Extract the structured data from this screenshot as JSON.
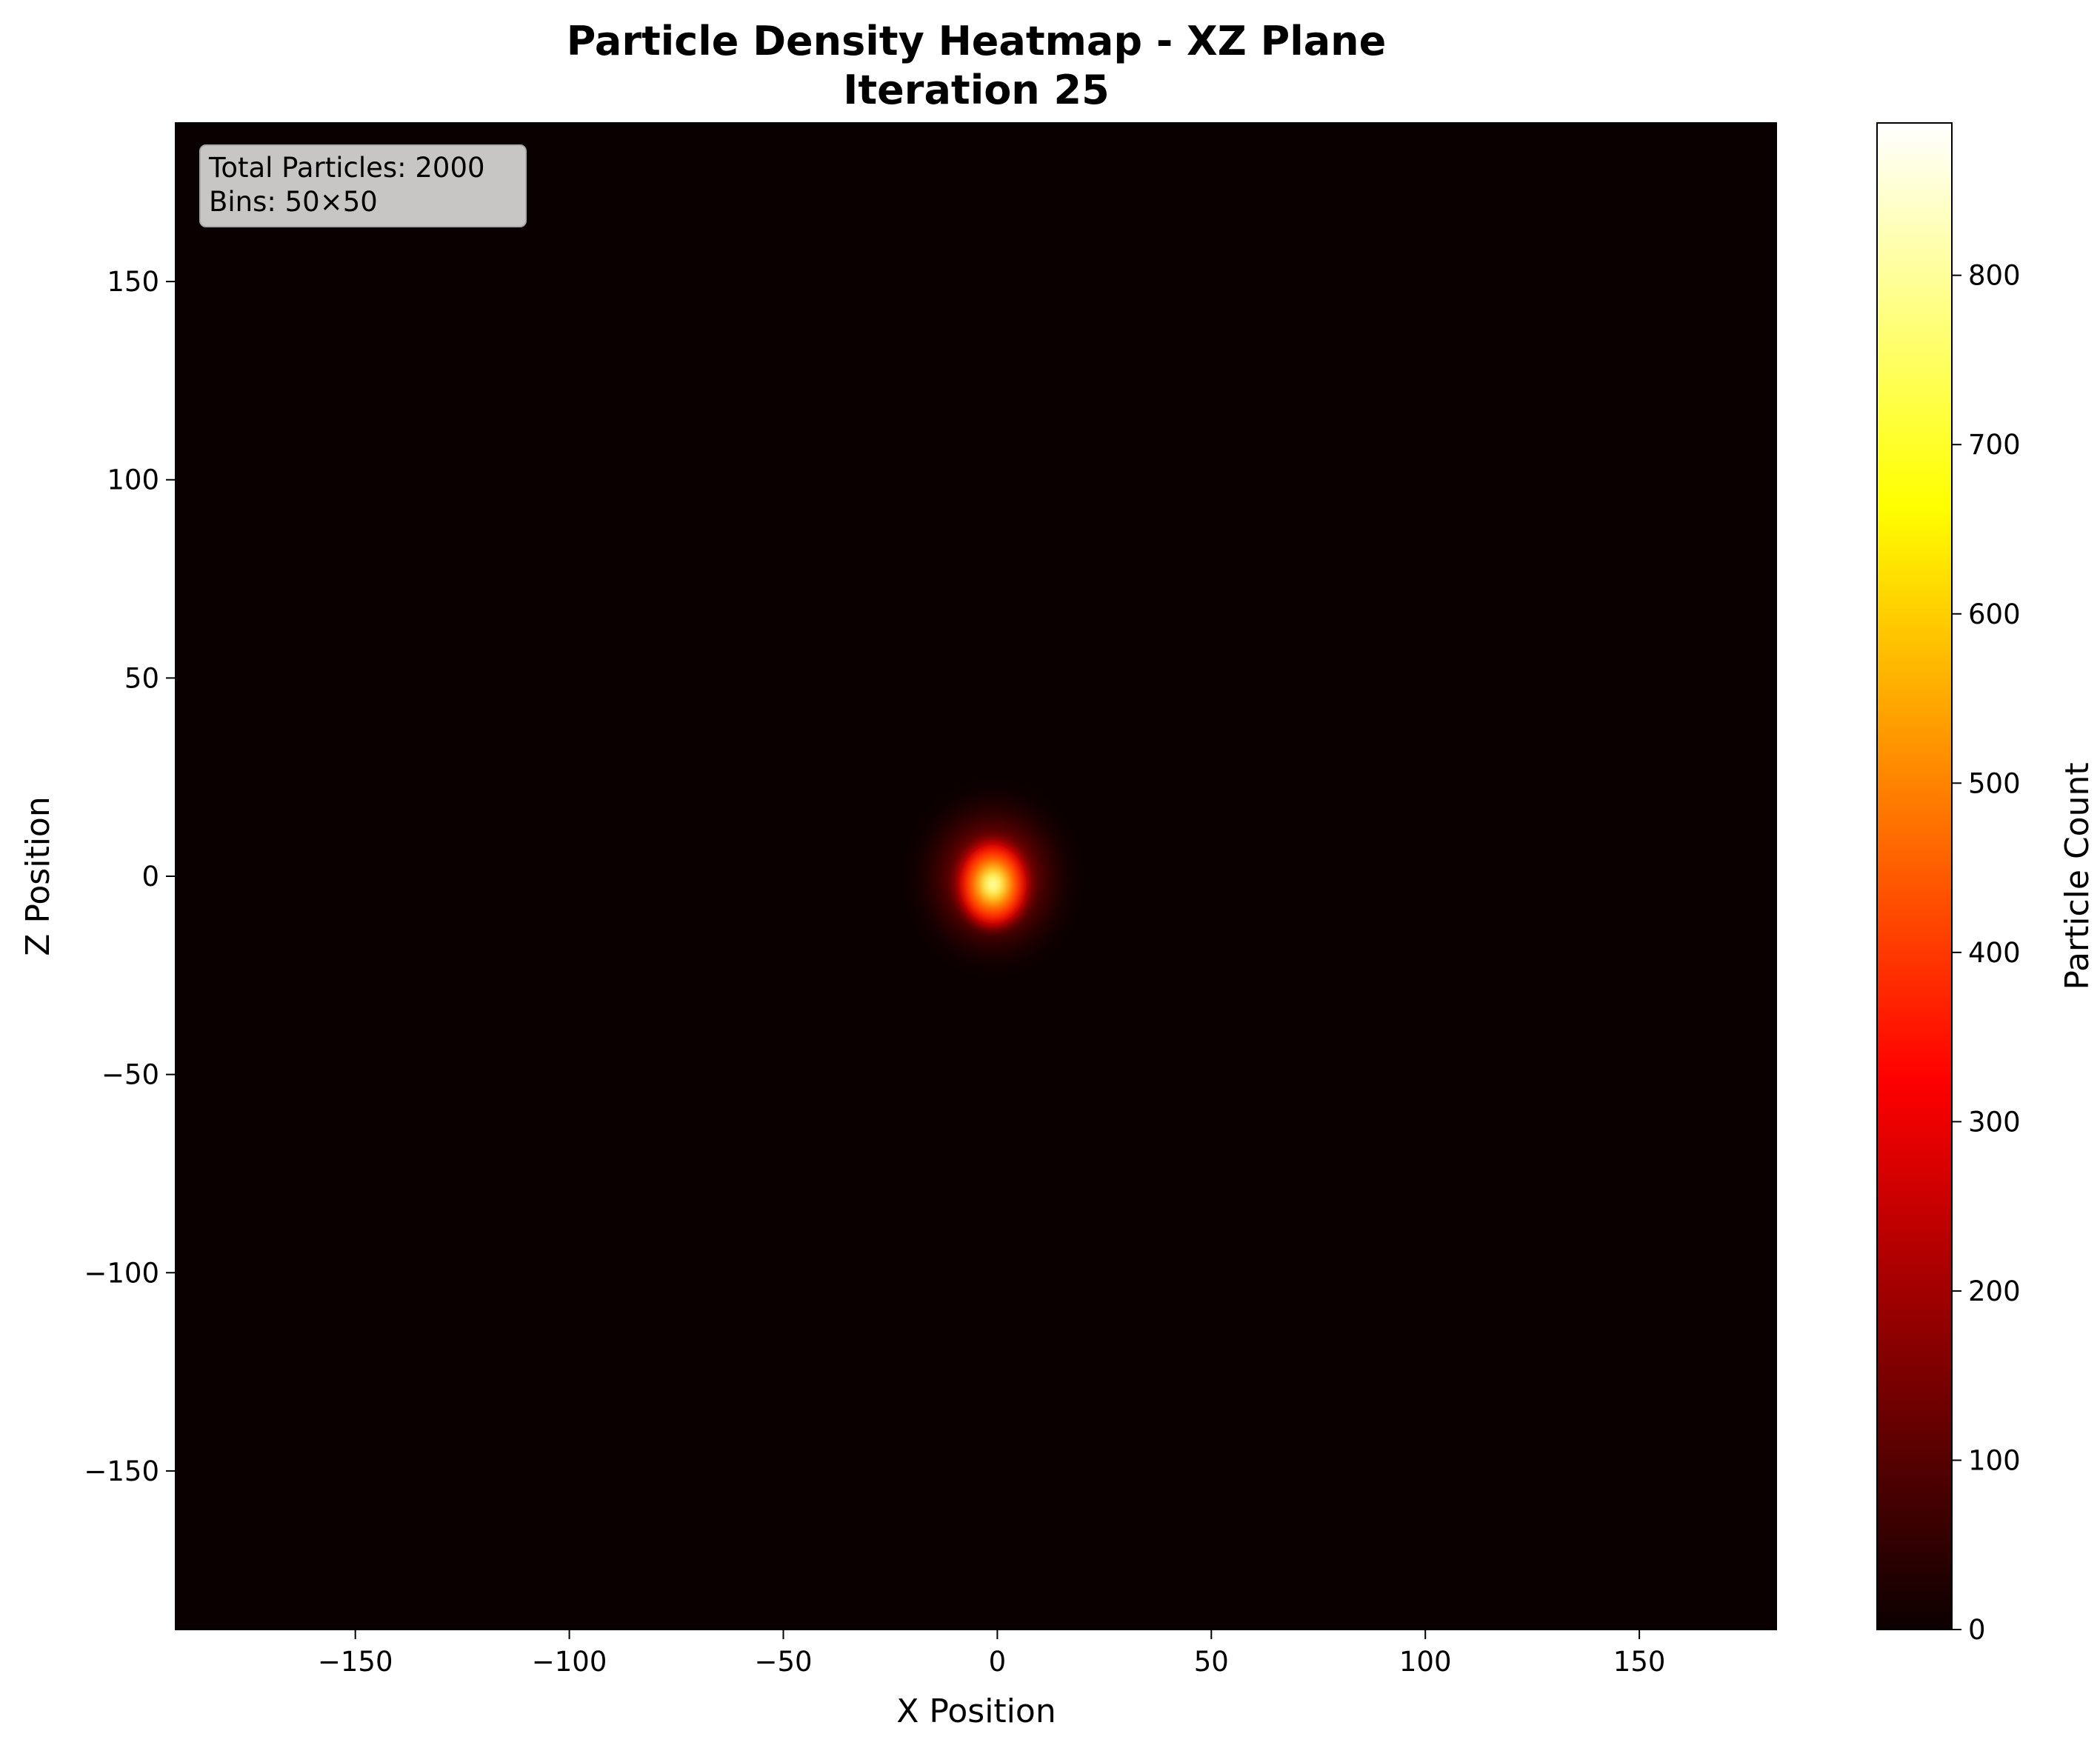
{
  "chart_data": {
    "type": "heatmap",
    "title": "Particle Density Heatmap - XZ Plane",
    "subtitle": "Iteration 25",
    "xlabel": "X Position",
    "ylabel": "Z Position",
    "xlim": [
      -192,
      182
    ],
    "ylim": [
      -190,
      190
    ],
    "x_ticks": [
      -150,
      -100,
      -50,
      0,
      50,
      100,
      150
    ],
    "y_ticks": [
      -150,
      -100,
      -50,
      0,
      50,
      100,
      150
    ],
    "x_tick_labels": [
      "−150",
      "−100",
      "−50",
      "0",
      "50",
      "100",
      "150"
    ],
    "y_tick_labels": [
      "−150",
      "−100",
      "−50",
      "0",
      "50",
      "100",
      "150"
    ],
    "colormap": "hot",
    "colorbar": {
      "label": "Particle Count",
      "range": [
        0,
        890
      ],
      "ticks": [
        0,
        100,
        200,
        300,
        400,
        500,
        600,
        700,
        800
      ],
      "tick_labels": [
        "0",
        "100",
        "200",
        "300",
        "400",
        "500",
        "600",
        "700",
        "800"
      ]
    },
    "info_box": {
      "line1": "Total Particles: 2000",
      "line2": "Bins: 50×50"
    },
    "bins": [
      50,
      50
    ],
    "peak": {
      "x": -1,
      "z": -2,
      "count": 890
    },
    "background_color": "#0b0000",
    "grid": false
  }
}
